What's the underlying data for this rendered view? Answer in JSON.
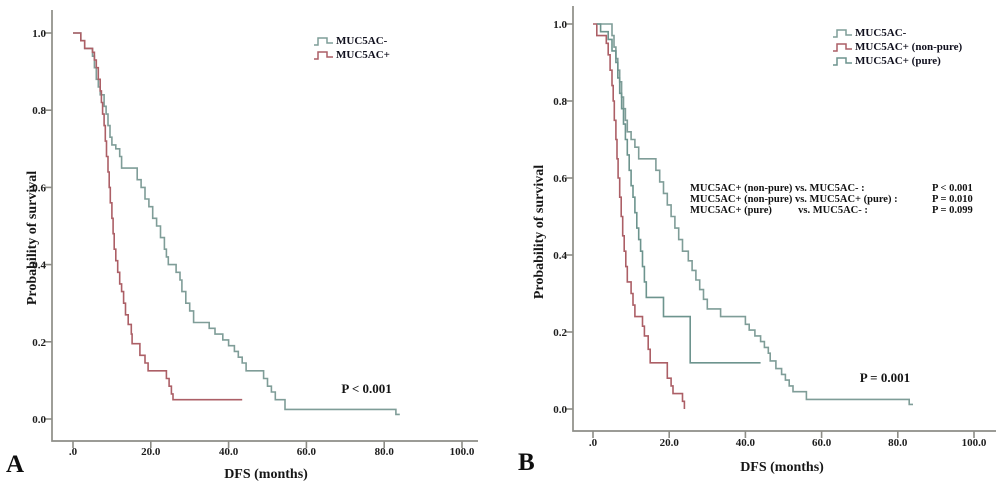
{
  "figure": {
    "description": "Kaplan-Meier disease-free survival curves by MUC5AC status",
    "background_color": "#ffffff",
    "axis_color": "#8d8d87",
    "text_color": "#1d1d1d"
  },
  "chart_data": [
    {
      "type": "line",
      "subtype": "kaplan-meier-step",
      "panel_label": "A",
      "xlabel": "DFS (months)",
      "ylabel": "Probability of survival",
      "xlim": [
        0,
        100
      ],
      "ylim": [
        0,
        1.0
      ],
      "grid": false,
      "legend_position": "upper-right-inside",
      "x_ticks": [
        {
          "v": 0,
          "label": ".0"
        },
        {
          "v": 20,
          "label": "20.0"
        },
        {
          "v": 40,
          "label": "40.0"
        },
        {
          "v": 60,
          "label": "60.0"
        },
        {
          "v": 80,
          "label": "80.0"
        },
        {
          "v": 100,
          "label": "100.0"
        }
      ],
      "y_ticks": [
        {
          "v": 0,
          "label": "0.0"
        },
        {
          "v": 0.2,
          "label": "0.2"
        },
        {
          "v": 0.4,
          "label": "0.4"
        },
        {
          "v": 0.6,
          "label": "0.6"
        },
        {
          "v": 0.8,
          "label": "0.8"
        },
        {
          "v": 1,
          "label": "1.0"
        }
      ],
      "series": [
        {
          "name": "MUC5AC-",
          "color": "#7f9d98",
          "points": [
            [
              0,
              1
            ],
            [
              2,
              0.98
            ],
            [
              3,
              0.96
            ],
            [
              5,
              0.94
            ],
            [
              5.5,
              0.91
            ],
            [
              6,
              0.88
            ],
            [
              6.5,
              0.86
            ],
            [
              7,
              0.84
            ],
            [
              8,
              0.81
            ],
            [
              8.5,
              0.79
            ],
            [
              9,
              0.76
            ],
            [
              9.5,
              0.73
            ],
            [
              10,
              0.71
            ],
            [
              11,
              0.7
            ],
            [
              12,
              0.68
            ],
            [
              12.5,
              0.65
            ],
            [
              16.5,
              0.62
            ],
            [
              17.5,
              0.6
            ],
            [
              18.5,
              0.57
            ],
            [
              19.5,
              0.55
            ],
            [
              20.5,
              0.52
            ],
            [
              21.5,
              0.5
            ],
            [
              22.5,
              0.47
            ],
            [
              23.5,
              0.44
            ],
            [
              24,
              0.42
            ],
            [
              24.5,
              0.4
            ],
            [
              26.5,
              0.38
            ],
            [
              27.5,
              0.36
            ],
            [
              28,
              0.33
            ],
            [
              29,
              0.3
            ],
            [
              30,
              0.28
            ],
            [
              31,
              0.25
            ],
            [
              35,
              0.235
            ],
            [
              36.5,
              0.22
            ],
            [
              38.5,
              0.205
            ],
            [
              40,
              0.19
            ],
            [
              41.5,
              0.175
            ],
            [
              42.5,
              0.16
            ],
            [
              43.5,
              0.145
            ],
            [
              44.5,
              0.125
            ],
            [
              49,
              0.105
            ],
            [
              50,
              0.085
            ],
            [
              51,
              0.07
            ],
            [
              52,
              0.05
            ],
            [
              54.5,
              0.025
            ],
            [
              83,
              0.012
            ],
            [
              84,
              0.012
            ]
          ]
        },
        {
          "name": "MUC5AC+",
          "color": "#ac5f66",
          "points": [
            [
              0,
              1
            ],
            [
              2,
              0.98
            ],
            [
              3,
              0.96
            ],
            [
              5,
              0.95
            ],
            [
              5.5,
              0.93
            ],
            [
              6,
              0.91
            ],
            [
              6.5,
              0.88
            ],
            [
              7,
              0.85
            ],
            [
              7.3,
              0.82
            ],
            [
              7.6,
              0.79
            ],
            [
              8,
              0.76
            ],
            [
              8.3,
              0.72
            ],
            [
              8.6,
              0.68
            ],
            [
              9,
              0.64
            ],
            [
              9.3,
              0.6
            ],
            [
              9.6,
              0.56
            ],
            [
              10,
              0.52
            ],
            [
              10.3,
              0.48
            ],
            [
              10.6,
              0.44
            ],
            [
              11,
              0.41
            ],
            [
              11.5,
              0.38
            ],
            [
              12,
              0.35
            ],
            [
              12.5,
              0.33
            ],
            [
              13,
              0.3
            ],
            [
              13.5,
              0.27
            ],
            [
              14.2,
              0.245
            ],
            [
              15,
              0.22
            ],
            [
              15.2,
              0.195
            ],
            [
              17.2,
              0.165
            ],
            [
              18.5,
              0.145
            ],
            [
              19.3,
              0.125
            ],
            [
              24,
              0.105
            ],
            [
              24.7,
              0.085
            ],
            [
              25.3,
              0.065
            ],
            [
              25.7,
              0.05
            ],
            [
              43.5,
              0.05
            ]
          ]
        }
      ],
      "annotations": [
        {
          "text": "P < 0.001",
          "x": 69,
          "y": 0.068
        }
      ]
    },
    {
      "type": "line",
      "subtype": "kaplan-meier-step",
      "panel_label": "B",
      "xlabel": "DFS (months)",
      "ylabel": "Probability of survival",
      "xlim": [
        0,
        100
      ],
      "ylim": [
        0,
        1.0
      ],
      "grid": false,
      "legend_position": "upper-right-inside",
      "x_ticks": [
        {
          "v": 0,
          "label": ".0"
        },
        {
          "v": 20,
          "label": "20.0"
        },
        {
          "v": 40,
          "label": "40.0"
        },
        {
          "v": 60,
          "label": "60.0"
        },
        {
          "v": 80,
          "label": "80.0"
        },
        {
          "v": 100,
          "label": "100.0"
        }
      ],
      "y_ticks": [
        {
          "v": 0,
          "label": "0.0"
        },
        {
          "v": 0.2,
          "label": "0.2"
        },
        {
          "v": 0.4,
          "label": "0.4"
        },
        {
          "v": 0.6,
          "label": "0.6"
        },
        {
          "v": 0.8,
          "label": "0.8"
        },
        {
          "v": 1,
          "label": "1.0"
        }
      ],
      "series": [
        {
          "name": "MUC5AC-",
          "color": "#7f9d98",
          "points": [
            [
              1,
              1
            ],
            [
              5,
              0.97
            ],
            [
              5.5,
              0.94
            ],
            [
              6,
              0.91
            ],
            [
              6.5,
              0.88
            ],
            [
              7,
              0.85
            ],
            [
              7.5,
              0.81
            ],
            [
              8,
              0.78
            ],
            [
              8.5,
              0.75
            ],
            [
              9,
              0.72
            ],
            [
              10,
              0.7
            ],
            [
              11,
              0.68
            ],
            [
              12,
              0.65
            ],
            [
              16.5,
              0.62
            ],
            [
              17.5,
              0.59
            ],
            [
              18.5,
              0.56
            ],
            [
              19.5,
              0.53
            ],
            [
              20.5,
              0.5
            ],
            [
              21.5,
              0.47
            ],
            [
              22.5,
              0.44
            ],
            [
              23.5,
              0.41
            ],
            [
              25,
              0.385
            ],
            [
              26,
              0.36
            ],
            [
              27,
              0.335
            ],
            [
              28,
              0.31
            ],
            [
              29,
              0.285
            ],
            [
              30,
              0.26
            ],
            [
              33.5,
              0.24
            ],
            [
              40,
              0.22
            ],
            [
              41,
              0.205
            ],
            [
              42.5,
              0.19
            ],
            [
              44,
              0.175
            ],
            [
              45,
              0.16
            ],
            [
              46,
              0.145
            ],
            [
              46.5,
              0.125
            ],
            [
              48,
              0.105
            ],
            [
              49.5,
              0.09
            ],
            [
              50.5,
              0.075
            ],
            [
              51.5,
              0.06
            ],
            [
              52.5,
              0.045
            ],
            [
              56,
              0.025
            ],
            [
              83,
              0.012
            ],
            [
              84,
              0.012
            ]
          ]
        },
        {
          "name": "MUC5AC+ (non-pure)",
          "color": "#ac5f66",
          "points": [
            [
              0,
              1
            ],
            [
              1,
              0.97
            ],
            [
              3.5,
              0.95
            ],
            [
              4,
              0.92
            ],
            [
              4.5,
              0.88
            ],
            [
              5,
              0.84
            ],
            [
              5.3,
              0.8
            ],
            [
              5.6,
              0.75
            ],
            [
              6,
              0.7
            ],
            [
              6.3,
              0.65
            ],
            [
              6.6,
              0.6
            ],
            [
              7,
              0.55
            ],
            [
              7.4,
              0.5
            ],
            [
              7.8,
              0.45
            ],
            [
              8.2,
              0.41
            ],
            [
              8.6,
              0.37
            ],
            [
              9,
              0.33
            ],
            [
              10,
              0.3
            ],
            [
              10.5,
              0.27
            ],
            [
              11,
              0.24
            ],
            [
              13,
              0.215
            ],
            [
              13.5,
              0.19
            ],
            [
              14.5,
              0.155
            ],
            [
              15,
              0.12
            ],
            [
              19.5,
              0.08
            ],
            [
              20.5,
              0.06
            ],
            [
              21,
              0.04
            ],
            [
              23.5,
              0.02
            ],
            [
              24,
              0
            ]
          ]
        },
        {
          "name": "MUC5AC+ (pure)",
          "color": "#6d948e",
          "points": [
            [
              1,
              1
            ],
            [
              2,
              0.98
            ],
            [
              4,
              0.96
            ],
            [
              5,
              0.93
            ],
            [
              6,
              0.9
            ],
            [
              6.5,
              0.86
            ],
            [
              7,
              0.82
            ],
            [
              7.5,
              0.78
            ],
            [
              8,
              0.74
            ],
            [
              8.5,
              0.7
            ],
            [
              9,
              0.66
            ],
            [
              9.5,
              0.62
            ],
            [
              10,
              0.58
            ],
            [
              10.5,
              0.55
            ],
            [
              11,
              0.51
            ],
            [
              11.5,
              0.47
            ],
            [
              12,
              0.44
            ],
            [
              12.5,
              0.41
            ],
            [
              13,
              0.37
            ],
            [
              13.5,
              0.33
            ],
            [
              14,
              0.29
            ],
            [
              18.5,
              0.24
            ],
            [
              25.5,
              0.12
            ],
            [
              44,
              0.12
            ]
          ]
        }
      ],
      "annotations": [
        {
          "text": "P = 0.001",
          "x": 70,
          "y": 0.07
        }
      ],
      "comparisons": [
        {
          "label": "MUC5AC+ (non-pure) vs. MUC5AC- :",
          "p": "P < 0.001"
        },
        {
          "label": "MUC5AC+ (non-pure) vs. MUC5AC+ (pure) :",
          "p": "P = 0.010"
        },
        {
          "label": "MUC5AC+ (pure)          vs. MUC5AC- :",
          "p": "P = 0.099"
        }
      ]
    }
  ]
}
